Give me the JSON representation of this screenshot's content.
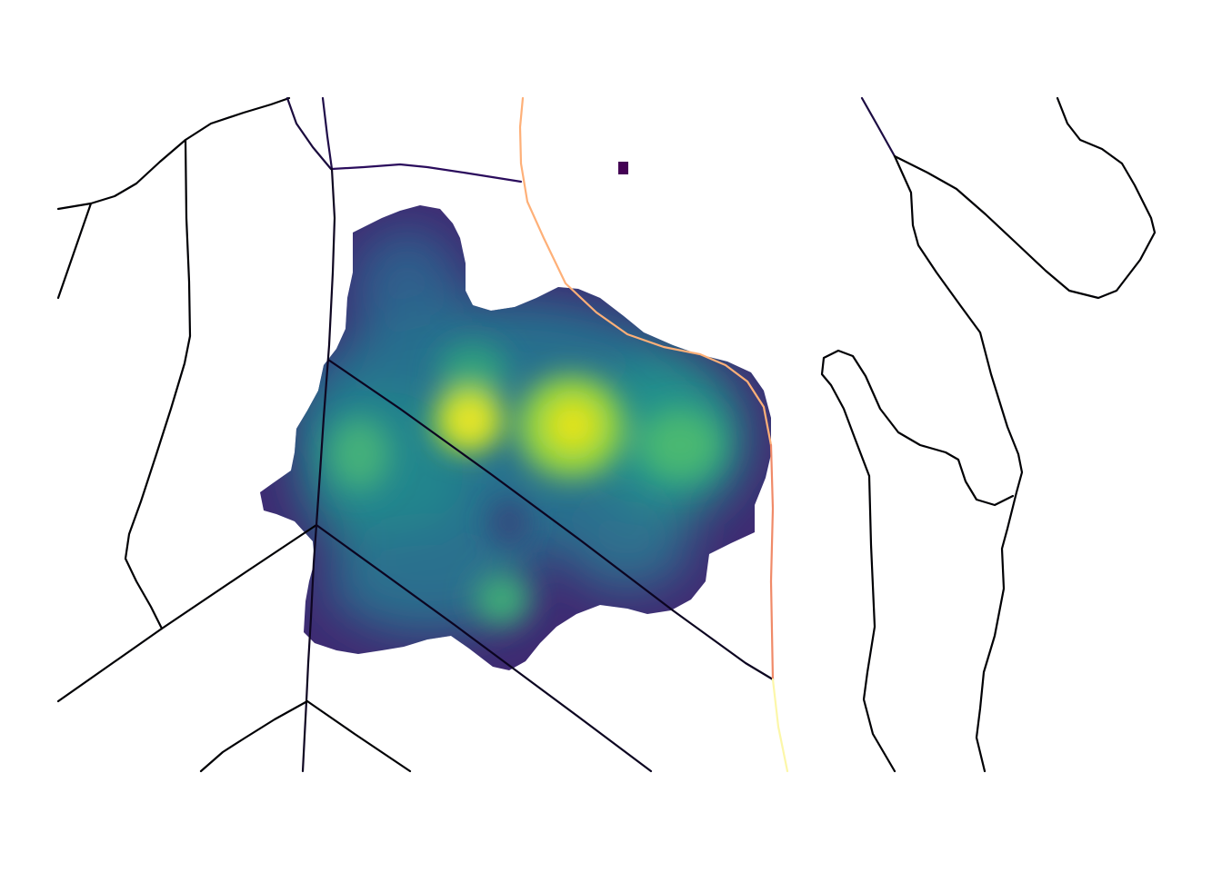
{
  "map": {
    "background": "#ffffff",
    "heatmap": {
      "colormap": "viridis",
      "colormap_stops": [
        "#440154",
        "#3b528b",
        "#21918c",
        "#5ec962",
        "#fde725"
      ]
    },
    "edge_colormap": {
      "name": "inferno",
      "stops": [
        "#000004",
        "#3b0f70",
        "#8c2981",
        "#de4968",
        "#fe9f6d",
        "#fcfdbf"
      ]
    },
    "annotations": []
  }
}
